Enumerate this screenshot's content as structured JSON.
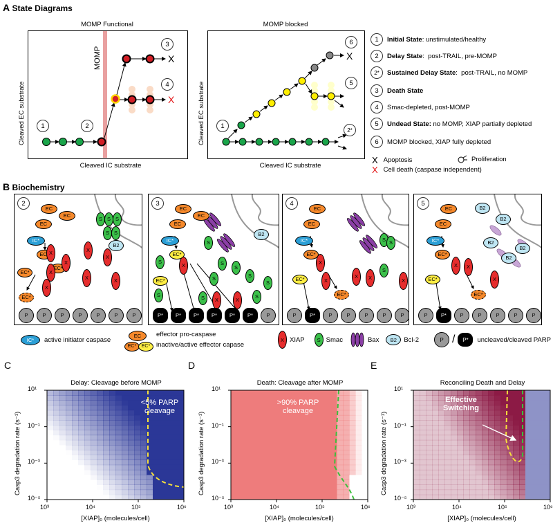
{
  "sectionA": {
    "letter": "A",
    "title": "State Diagrams"
  },
  "panelFunctional": {
    "title": "MOMP Functional",
    "momp_label": "MOMP",
    "xlabel": "Cleaved IC substrate",
    "ylabel": "Cleaved EC substrate",
    "states": [
      "1",
      "2",
      "3",
      "4"
    ],
    "apoptosis_mark": "X",
    "death_mark": "X"
  },
  "panelBlocked": {
    "title": "MOMP blocked",
    "xlabel": "Cleaved IC substrate",
    "ylabel": "Cleaved EC substrate",
    "states": [
      "1",
      "5",
      "6",
      "2*"
    ],
    "apoptosis_mark": "X"
  },
  "stateLegend": [
    {
      "num": "1",
      "bold": "Initial State",
      "rest": ": unstimulated/healthy"
    },
    {
      "num": "2",
      "bold": "Delay State",
      "rest": ":  post-TRAIL, pre-MOMP"
    },
    {
      "num": "2*",
      "bold": "Sustained Delay State",
      "rest": ":  post-TRAIL, no MOMP"
    },
    {
      "num": "3",
      "bold": "Death State",
      "rest": ""
    },
    {
      "num": "4",
      "bold": "",
      "rest": "Smac-depleted, post-MOMP"
    },
    {
      "num": "5",
      "bold": "Undead State:",
      "rest": " no MOMP, XIAP partially depleted"
    },
    {
      "num": "6",
      "bold": "",
      "rest": "MOMP blocked, XIAP fully depleted"
    }
  ],
  "markerLegend": {
    "apoptosis_mark": "X",
    "apoptosis": "Apoptosis",
    "proliferation": "Proliferation",
    "death_mark": "X",
    "death": "Cell death (caspase independent)"
  },
  "sectionB": {
    "letter": "B",
    "title": "Biochemistry"
  },
  "bioPanels": [
    "2",
    "3",
    "4",
    "5"
  ],
  "bioLabels": {
    "ec": "EC",
    "ecstar": "EC*",
    "icstar": "IC*",
    "b2": "B2",
    "s": "S",
    "x": "X",
    "p": "P",
    "pstar": "P*"
  },
  "bioLegend": {
    "ic": "active initiator caspase",
    "ec1": "effector pro-caspase",
    "ec2": "inactive/active effector capase",
    "xiap": "XIAP",
    "smac": "Smac",
    "bax": "Bax",
    "bcl2": "Bcl-2",
    "parp": "uncleaved/cleaved PARP",
    "slash": "/"
  },
  "heatmaps": [
    {
      "letter": "C",
      "title": "Delay: Cleavage before MOMP",
      "annotation1": "<5% PARP",
      "annotation2": "cleavage",
      "ylabel": "Casp3 degradation rate (s⁻¹)",
      "xlabel": "[XIAP]₀ (molecules/cell)",
      "xticks": [
        "10³",
        "10⁴",
        "10⁵",
        "10⁶"
      ],
      "yticks": [
        "10¹",
        "10⁻¹",
        "10⁻³",
        "10⁻⁵"
      ],
      "color": "#2b3797"
    },
    {
      "letter": "D",
      "title": "Death: Cleavage after MOMP",
      "annotation1": ">90% PARP",
      "annotation2": "cleavage",
      "ylabel": "Casp3 degradation rate (s⁻¹)",
      "xlabel": "[XIAP]₀ (molecules/cell)",
      "xticks": [
        "10³",
        "10⁴",
        "10⁵",
        "10⁶"
      ],
      "yticks": [
        "10¹",
        "10⁻¹",
        "10⁻³",
        "10⁻⁵"
      ],
      "color": "#ee7c7c"
    },
    {
      "letter": "E",
      "title": "Reconciling Death and Delay",
      "annotation1": "Effective",
      "annotation2": "Switching",
      "ylabel": "Casp3 degradation rate (s⁻¹)",
      "xlabel": "[XIAP]₀ (molecules/cell)",
      "xticks": [
        "10³",
        "10⁴",
        "10⁵",
        "10⁶"
      ],
      "yticks": [
        "10¹",
        "10⁻¹",
        "10⁻³",
        "10⁻⁵"
      ],
      "color": "#8c1a45"
    }
  ]
}
